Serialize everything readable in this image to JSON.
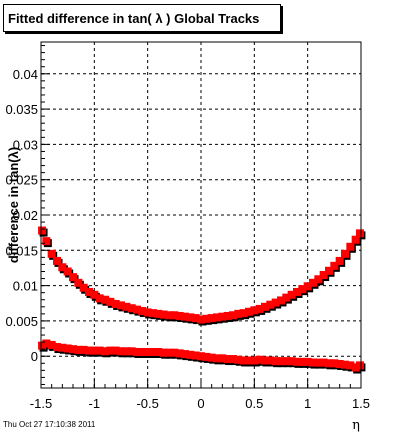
{
  "title": "Fitted difference in tan( λ )  Global Tracks",
  "footer_timestamp": "Thu Oct 27 17:10:38 2011",
  "chart_data": {
    "type": "scatter",
    "title": "Fitted difference in tan( λ )  Global Tracks",
    "xlabel": "η",
    "ylabel": "difference in tan(λ)",
    "xlim": [
      -1.5,
      1.5
    ],
    "ylim": [
      -0.0045,
      0.0445
    ],
    "x_ticks": [
      "-1.5",
      "-1",
      "-0.5",
      "0",
      "0.5",
      "1",
      "1.5"
    ],
    "y_ticks": [
      "0",
      "0.005",
      "0.01",
      "0.015",
      "0.02",
      "0.025",
      "0.03",
      "0.035",
      "0.04"
    ],
    "grid": true,
    "marker_colors": {
      "front": "#ff0000",
      "back": "#000000"
    },
    "series": [
      {
        "marker": "square",
        "points": [
          {
            "x": -1.49,
            "y": 0.0178
          },
          {
            "x": -1.45,
            "y": 0.0163
          },
          {
            "x": -1.4,
            "y": 0.0145
          },
          {
            "x": -1.35,
            "y": 0.0135
          },
          {
            "x": -1.3,
            "y": 0.0126
          },
          {
            "x": -1.25,
            "y": 0.012
          },
          {
            "x": -1.2,
            "y": 0.0112
          },
          {
            "x": -1.15,
            "y": 0.0104
          },
          {
            "x": -1.1,
            "y": 0.0097
          },
          {
            "x": -1.05,
            "y": 0.0091
          },
          {
            "x": -1.0,
            "y": 0.0087
          },
          {
            "x": -0.95,
            "y": 0.0082
          },
          {
            "x": -0.9,
            "y": 0.008
          },
          {
            "x": -0.85,
            "y": 0.0077
          },
          {
            "x": -0.8,
            "y": 0.0074
          },
          {
            "x": -0.75,
            "y": 0.0072
          },
          {
            "x": -0.7,
            "y": 0.007
          },
          {
            "x": -0.65,
            "y": 0.0068
          },
          {
            "x": -0.6,
            "y": 0.0066
          },
          {
            "x": -0.55,
            "y": 0.0064
          },
          {
            "x": -0.5,
            "y": 0.0062
          },
          {
            "x": -0.45,
            "y": 0.0061
          },
          {
            "x": -0.4,
            "y": 0.006
          },
          {
            "x": -0.35,
            "y": 0.0059
          },
          {
            "x": -0.3,
            "y": 0.0058
          },
          {
            "x": -0.25,
            "y": 0.0058
          },
          {
            "x": -0.2,
            "y": 0.0057
          },
          {
            "x": -0.15,
            "y": 0.0056
          },
          {
            "x": -0.1,
            "y": 0.0055
          },
          {
            "x": -0.05,
            "y": 0.0054
          },
          {
            "x": 0.0,
            "y": 0.0052
          },
          {
            "x": 0.05,
            "y": 0.0053
          },
          {
            "x": 0.1,
            "y": 0.0054
          },
          {
            "x": 0.15,
            "y": 0.0055
          },
          {
            "x": 0.2,
            "y": 0.0056
          },
          {
            "x": 0.25,
            "y": 0.0057
          },
          {
            "x": 0.3,
            "y": 0.0058
          },
          {
            "x": 0.35,
            "y": 0.006
          },
          {
            "x": 0.4,
            "y": 0.0061
          },
          {
            "x": 0.45,
            "y": 0.0063
          },
          {
            "x": 0.5,
            "y": 0.0065
          },
          {
            "x": 0.55,
            "y": 0.0067
          },
          {
            "x": 0.6,
            "y": 0.007
          },
          {
            "x": 0.65,
            "y": 0.0073
          },
          {
            "x": 0.7,
            "y": 0.0076
          },
          {
            "x": 0.75,
            "y": 0.0079
          },
          {
            "x": 0.8,
            "y": 0.0083
          },
          {
            "x": 0.85,
            "y": 0.0087
          },
          {
            "x": 0.9,
            "y": 0.0091
          },
          {
            "x": 0.95,
            "y": 0.0095
          },
          {
            "x": 1.0,
            "y": 0.0099
          },
          {
            "x": 1.05,
            "y": 0.0104
          },
          {
            "x": 1.1,
            "y": 0.0109
          },
          {
            "x": 1.15,
            "y": 0.0115
          },
          {
            "x": 1.2,
            "y": 0.0121
          },
          {
            "x": 1.25,
            "y": 0.0128
          },
          {
            "x": 1.3,
            "y": 0.0135
          },
          {
            "x": 1.35,
            "y": 0.0145
          },
          {
            "x": 1.4,
            "y": 0.0155
          },
          {
            "x": 1.45,
            "y": 0.0165
          },
          {
            "x": 1.49,
            "y": 0.0174
          }
        ]
      },
      {
        "marker": "square",
        "points": [
          {
            "x": -1.49,
            "y": 0.0015
          },
          {
            "x": -1.45,
            "y": 0.0018
          },
          {
            "x": -1.4,
            "y": 0.0016
          },
          {
            "x": -1.35,
            "y": 0.0013
          },
          {
            "x": -1.3,
            "y": 0.0012
          },
          {
            "x": -1.25,
            "y": 0.0011
          },
          {
            "x": -1.2,
            "y": 0.001
          },
          {
            "x": -1.15,
            "y": 0.0009
          },
          {
            "x": -1.1,
            "y": 0.0009
          },
          {
            "x": -1.05,
            "y": 0.0008
          },
          {
            "x": -1.0,
            "y": 0.0008
          },
          {
            "x": -0.95,
            "y": 0.0008
          },
          {
            "x": -0.9,
            "y": 0.0007
          },
          {
            "x": -0.85,
            "y": 0.0008
          },
          {
            "x": -0.8,
            "y": 0.0008
          },
          {
            "x": -0.75,
            "y": 0.0007
          },
          {
            "x": -0.7,
            "y": 0.0007
          },
          {
            "x": -0.65,
            "y": 0.0007
          },
          {
            "x": -0.6,
            "y": 0.0006
          },
          {
            "x": -0.55,
            "y": 0.0006
          },
          {
            "x": -0.5,
            "y": 0.0006
          },
          {
            "x": -0.45,
            "y": 0.0006
          },
          {
            "x": -0.4,
            "y": 0.0006
          },
          {
            "x": -0.35,
            "y": 0.0005
          },
          {
            "x": -0.3,
            "y": 0.0005
          },
          {
            "x": -0.25,
            "y": 0.0005
          },
          {
            "x": -0.2,
            "y": 0.0004
          },
          {
            "x": -0.15,
            "y": 0.0003
          },
          {
            "x": -0.1,
            "y": 0.0002
          },
          {
            "x": -0.05,
            "y": 0.0001
          },
          {
            "x": 0.0,
            "y": 0.0
          },
          {
            "x": 0.05,
            "y": -0.0001
          },
          {
            "x": 0.1,
            "y": -0.0002
          },
          {
            "x": 0.15,
            "y": -0.0003
          },
          {
            "x": 0.2,
            "y": -0.0003
          },
          {
            "x": 0.25,
            "y": -0.0004
          },
          {
            "x": 0.3,
            "y": -0.0004
          },
          {
            "x": 0.35,
            "y": -0.0005
          },
          {
            "x": 0.4,
            "y": -0.0006
          },
          {
            "x": 0.45,
            "y": -0.0006
          },
          {
            "x": 0.5,
            "y": -0.0006
          },
          {
            "x": 0.55,
            "y": -0.0005
          },
          {
            "x": 0.6,
            "y": -0.0006
          },
          {
            "x": 0.65,
            "y": -0.0006
          },
          {
            "x": 0.7,
            "y": -0.0007
          },
          {
            "x": 0.75,
            "y": -0.0007
          },
          {
            "x": 0.8,
            "y": -0.0007
          },
          {
            "x": 0.85,
            "y": -0.0007
          },
          {
            "x": 0.9,
            "y": -0.0008
          },
          {
            "x": 0.95,
            "y": -0.0008
          },
          {
            "x": 1.0,
            "y": -0.0008
          },
          {
            "x": 1.05,
            "y": -0.0009
          },
          {
            "x": 1.1,
            "y": -0.0009
          },
          {
            "x": 1.15,
            "y": -0.0009
          },
          {
            "x": 1.2,
            "y": -0.001
          },
          {
            "x": 1.25,
            "y": -0.001
          },
          {
            "x": 1.3,
            "y": -0.0011
          },
          {
            "x": 1.35,
            "y": -0.0012
          },
          {
            "x": 1.4,
            "y": -0.0013
          },
          {
            "x": 1.45,
            "y": -0.0016
          },
          {
            "x": 1.49,
            "y": -0.0013
          }
        ]
      }
    ]
  }
}
